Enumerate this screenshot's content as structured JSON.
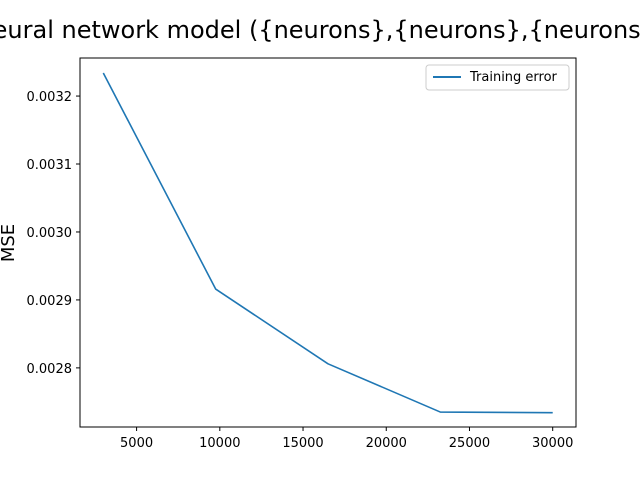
{
  "chart_data": {
    "type": "line",
    "title": "Neural network model ({neurons},{neurons},{neurons})",
    "xlabel": "",
    "ylabel": "MSE",
    "xlim": [
      1600,
      31400
    ],
    "ylim": [
      0.002713,
      0.003256
    ],
    "x_ticks": [
      5000,
      10000,
      15000,
      20000,
      25000,
      30000
    ],
    "y_ticks": [
      0.0028,
      0.0029,
      0.003,
      0.0031,
      0.0032
    ],
    "grid": false,
    "legend_position": "upper right",
    "series": [
      {
        "name": "Training error",
        "color": "#1f77b4",
        "x": [
          3000,
          9750,
          16500,
          23250,
          30000
        ],
        "values": [
          0.003234,
          0.002916,
          0.002806,
          0.002735,
          0.002734
        ]
      }
    ]
  }
}
